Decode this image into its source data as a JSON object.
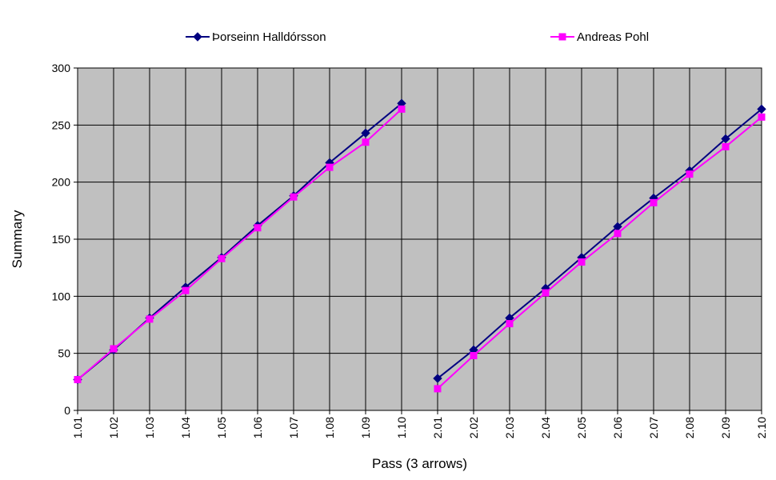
{
  "chart_data": {
    "type": "line",
    "title": "",
    "xlabel": "Pass (3 arrows)",
    "ylabel": "Summary",
    "ylim": [
      0,
      300
    ],
    "yticks": [
      0,
      50,
      100,
      150,
      200,
      250,
      300
    ],
    "grid": true,
    "legend_position": "top",
    "categories": [
      "1.01",
      "1.02",
      "1.03",
      "1.04",
      "1.05",
      "1.06",
      "1.07",
      "1.08",
      "1.09",
      "1.10",
      "2.01",
      "2.02",
      "2.03",
      "2.04",
      "2.05",
      "2.06",
      "2.07",
      "2.08",
      "2.09",
      "2.10"
    ],
    "series": [
      {
        "name": "Þorseinn Halldórsson",
        "color": "#000080",
        "marker": "diamond",
        "values": [
          27,
          53,
          81,
          108,
          134,
          162,
          188,
          217,
          243,
          269,
          28,
          53,
          81,
          107,
          134,
          161,
          186,
          210,
          238,
          264
        ]
      },
      {
        "name": "Andreas Pohl",
        "color": "#ff00ff",
        "marker": "square",
        "values": [
          27,
          54,
          80,
          105,
          133,
          160,
          187,
          213,
          235,
          264,
          19,
          48,
          76,
          103,
          130,
          155,
          182,
          207,
          231,
          257
        ]
      }
    ],
    "segments": [
      [
        0,
        9
      ],
      [
        10,
        19
      ]
    ],
    "colors": {
      "plot_background": "#c0c0c0",
      "grid": "#000000"
    }
  }
}
